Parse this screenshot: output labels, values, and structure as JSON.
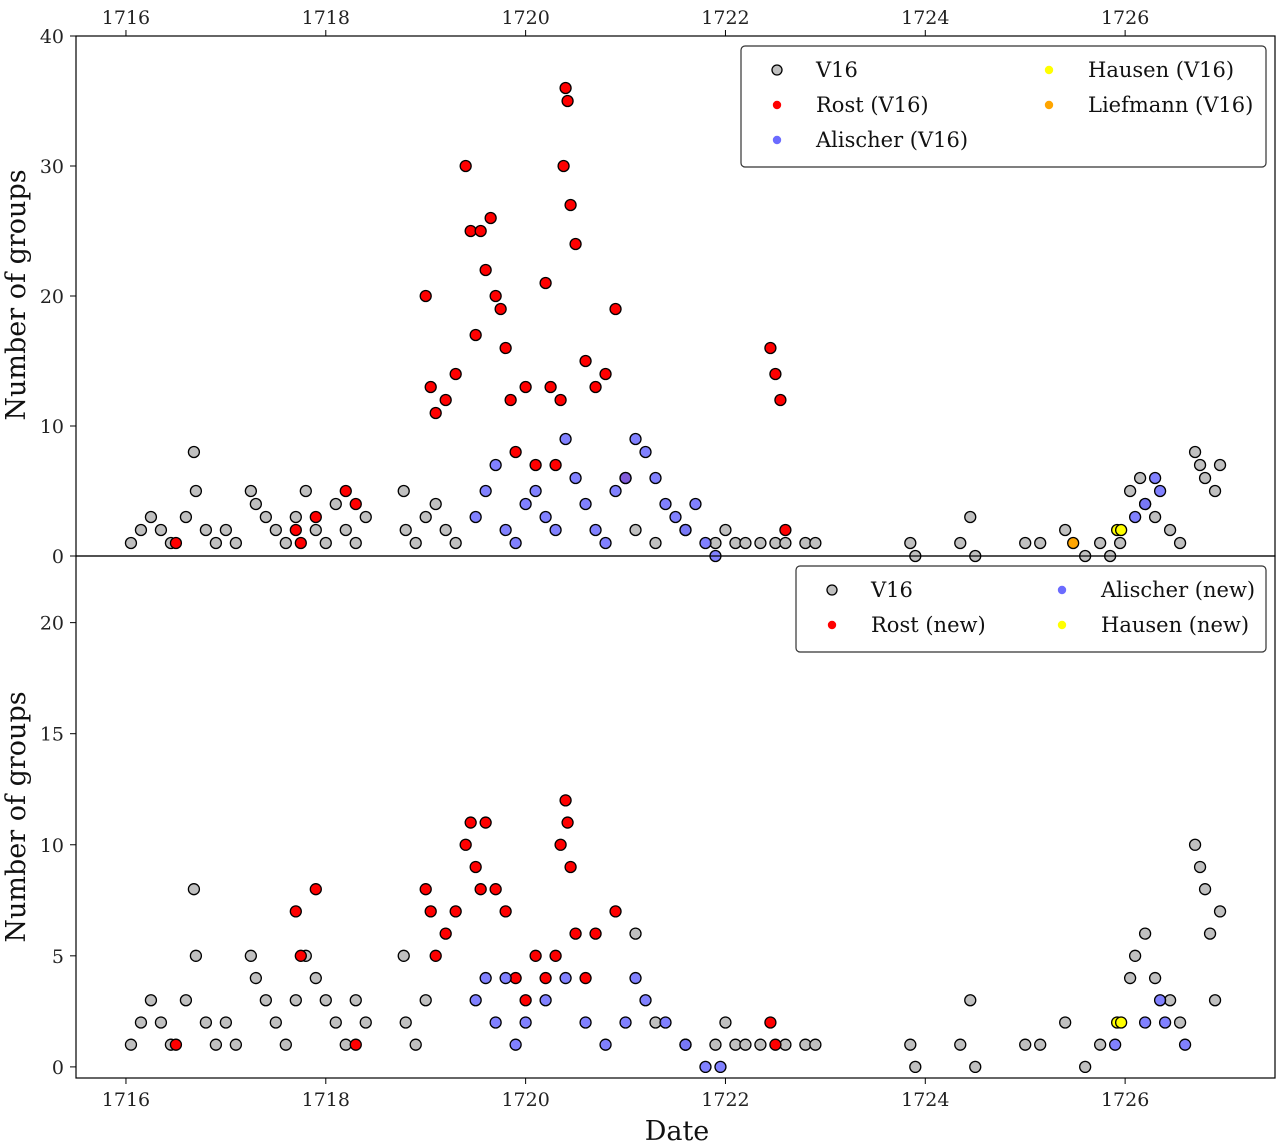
{
  "chart_data": [
    {
      "panel": "top",
      "type": "scatter",
      "xlabel": "",
      "ylabel": "Number of groups",
      "xlim": [
        1715.5,
        1727.5
      ],
      "ylim": [
        0,
        40
      ],
      "xticks": [
        "1716",
        "1718",
        "1720",
        "1722",
        "1724",
        "1726"
      ],
      "yticks": [
        "0",
        "10",
        "20",
        "30",
        "40"
      ],
      "x_ticks_on_top": true,
      "legend_position": "top-right",
      "legend": [
        {
          "label": "V16",
          "color": "#c0c0c0"
        },
        {
          "label": "Rost (V16)",
          "color": "#ff0000"
        },
        {
          "label": "Alischer (V16)",
          "color": "#6b6bff"
        },
        {
          "label": "Hausen (V16)",
          "color": "#ffff00"
        },
        {
          "label": "Liefmann (V16)",
          "color": "#ffa500"
        }
      ],
      "series": [
        {
          "name": "V16",
          "color": "#c0c0c0",
          "x": [
            1716.05,
            1716.15,
            1716.25,
            1716.35,
            1716.45,
            1716.6,
            1716.68,
            1716.7,
            1716.8,
            1716.9,
            1717.0,
            1717.1,
            1717.25,
            1717.3,
            1717.4,
            1717.5,
            1717.6,
            1717.7,
            1717.8,
            1717.9,
            1718.0,
            1718.1,
            1718.2,
            1718.3,
            1718.4,
            1718.78,
            1718.8,
            1718.9,
            1719.0,
            1719.1,
            1719.2,
            1719.3,
            1721.1,
            1721.3,
            1721.6,
            1721.9,
            1722.0,
            1722.1,
            1722.2,
            1722.35,
            1722.5,
            1722.6,
            1722.8,
            1722.9,
            1723.85,
            1723.9,
            1724.35,
            1724.45,
            1724.5,
            1725.0,
            1725.15,
            1725.4,
            1725.6,
            1725.75,
            1725.85,
            1725.95,
            1726.05,
            1726.15,
            1726.2,
            1726.3,
            1726.45,
            1726.55,
            1726.7,
            1726.75,
            1726.8,
            1726.9,
            1726.95
          ],
          "y": [
            1,
            2,
            3,
            2,
            1,
            3,
            8,
            5,
            2,
            1,
            2,
            1,
            5,
            4,
            3,
            2,
            1,
            3,
            5,
            2,
            1,
            4,
            2,
            1,
            3,
            5,
            2,
            1,
            3,
            4,
            2,
            1,
            2,
            1,
            2,
            1,
            2,
            1,
            1,
            1,
            1,
            1,
            1,
            1,
            1,
            0,
            1,
            3,
            0,
            1,
            1,
            2,
            0,
            1,
            0,
            1,
            5,
            6,
            4,
            3,
            2,
            1,
            8,
            7,
            6,
            5,
            7
          ]
        },
        {
          "name": "Rost (V16)",
          "color": "#ff0000",
          "x": [
            1716.5,
            1717.7,
            1717.75,
            1717.9,
            1718.2,
            1718.3,
            1719.0,
            1719.05,
            1719.1,
            1719.2,
            1719.3,
            1719.4,
            1719.45,
            1719.5,
            1719.55,
            1719.6,
            1719.65,
            1719.7,
            1719.75,
            1719.8,
            1719.85,
            1719.9,
            1720.0,
            1720.1,
            1720.2,
            1720.25,
            1720.3,
            1720.35,
            1720.38,
            1720.4,
            1720.42,
            1720.45,
            1720.5,
            1720.6,
            1720.7,
            1720.8,
            1720.9,
            1721.0,
            1722.45,
            1722.5,
            1722.55,
            1722.6
          ],
          "y": [
            1,
            2,
            1,
            3,
            5,
            4,
            20,
            13,
            11,
            12,
            14,
            30,
            25,
            17,
            25,
            22,
            26,
            20,
            19,
            16,
            12,
            8,
            13,
            7,
            21,
            13,
            7,
            12,
            30,
            36,
            35,
            27,
            24,
            15,
            13,
            14,
            19,
            6,
            16,
            14,
            12,
            2
          ]
        },
        {
          "name": "Alischer (V16)",
          "color": "#6b6bff",
          "x": [
            1719.5,
            1719.6,
            1719.7,
            1719.8,
            1719.9,
            1720.0,
            1720.1,
            1720.2,
            1720.3,
            1720.4,
            1720.5,
            1720.6,
            1720.7,
            1720.8,
            1720.9,
            1721.0,
            1721.1,
            1721.2,
            1721.3,
            1721.4,
            1721.5,
            1721.6,
            1721.7,
            1721.8,
            1721.9,
            1726.1,
            1726.2,
            1726.3,
            1726.35
          ],
          "y": [
            3,
            5,
            7,
            2,
            1,
            4,
            5,
            3,
            2,
            9,
            6,
            4,
            2,
            1,
            5,
            6,
            9,
            8,
            6,
            4,
            3,
            2,
            4,
            1,
            0,
            3,
            4,
            6,
            5
          ]
        },
        {
          "name": "Hausen (V16)",
          "color": "#ffff00",
          "x": [
            1725.92,
            1725.96
          ],
          "y": [
            2,
            2
          ]
        },
        {
          "name": "Liefmann (V16)",
          "color": "#ffa500",
          "x": [
            1725.48
          ],
          "y": [
            1
          ]
        }
      ]
    },
    {
      "panel": "bottom",
      "type": "scatter",
      "xlabel": "Date",
      "ylabel": "Number of groups",
      "xlim": [
        1715.5,
        1727.5
      ],
      "ylim": [
        -0.5,
        23
      ],
      "xticks": [
        "1716",
        "1718",
        "1720",
        "1722",
        "1724",
        "1726"
      ],
      "yticks": [
        "0",
        "5",
        "10",
        "15",
        "20"
      ],
      "legend_position": "top-right",
      "legend": [
        {
          "label": "V16",
          "color": "#c0c0c0"
        },
        {
          "label": "Rost (new)",
          "color": "#ff0000"
        },
        {
          "label": "Alischer (new)",
          "color": "#6b6bff"
        },
        {
          "label": "Hausen (new)",
          "color": "#ffff00"
        }
      ],
      "series": [
        {
          "name": "V16",
          "color": "#c0c0c0",
          "x": [
            1716.05,
            1716.15,
            1716.25,
            1716.35,
            1716.45,
            1716.6,
            1716.68,
            1716.7,
            1716.8,
            1716.9,
            1717.0,
            1717.1,
            1717.25,
            1717.3,
            1717.4,
            1717.5,
            1717.6,
            1717.7,
            1717.8,
            1717.9,
            1718.0,
            1718.1,
            1718.2,
            1718.3,
            1718.4,
            1718.78,
            1718.8,
            1718.9,
            1719.0,
            1721.1,
            1721.3,
            1721.6,
            1721.9,
            1722.0,
            1722.1,
            1722.2,
            1722.35,
            1722.6,
            1722.8,
            1722.9,
            1723.85,
            1723.9,
            1724.35,
            1724.45,
            1724.5,
            1725.0,
            1725.15,
            1725.4,
            1725.6,
            1725.75,
            1726.05,
            1726.1,
            1726.2,
            1726.3,
            1726.45,
            1726.55,
            1726.7,
            1726.75,
            1726.8,
            1726.85,
            1726.9,
            1726.95
          ],
          "y": [
            1,
            2,
            3,
            2,
            1,
            3,
            8,
            5,
            2,
            1,
            2,
            1,
            5,
            4,
            3,
            2,
            1,
            3,
            5,
            4,
            3,
            2,
            1,
            3,
            2,
            5,
            2,
            1,
            3,
            6,
            2,
            1,
            1,
            2,
            1,
            1,
            1,
            1,
            1,
            1,
            1,
            0,
            1,
            3,
            0,
            1,
            1,
            2,
            0,
            1,
            4,
            5,
            6,
            4,
            3,
            2,
            10,
            9,
            8,
            6,
            3,
            7
          ]
        },
        {
          "name": "Rost (new)",
          "color": "#ff0000",
          "x": [
            1716.5,
            1717.7,
            1717.75,
            1717.9,
            1718.3,
            1719.0,
            1719.05,
            1719.1,
            1719.2,
            1719.3,
            1719.4,
            1719.45,
            1719.5,
            1719.55,
            1719.6,
            1719.7,
            1719.8,
            1719.9,
            1720.0,
            1720.1,
            1720.2,
            1720.3,
            1720.35,
            1720.4,
            1720.42,
            1720.45,
            1720.5,
            1720.6,
            1720.7,
            1720.9,
            1722.45,
            1722.5
          ],
          "y": [
            1,
            7,
            5,
            8,
            1,
            8,
            7,
            5,
            6,
            7,
            10,
            11,
            9,
            8,
            11,
            8,
            7,
            4,
            3,
            5,
            4,
            5,
            10,
            12,
            11,
            9,
            6,
            4,
            6,
            7,
            2,
            1
          ]
        },
        {
          "name": "Alischer (new)",
          "color": "#6b6bff",
          "x": [
            1719.5,
            1719.6,
            1719.7,
            1719.8,
            1719.9,
            1720.0,
            1720.2,
            1720.4,
            1720.6,
            1720.8,
            1721.0,
            1721.1,
            1721.2,
            1721.4,
            1721.6,
            1721.8,
            1721.95,
            1725.9,
            1726.2,
            1726.35,
            1726.4,
            1726.6
          ],
          "y": [
            3,
            4,
            2,
            4,
            1,
            2,
            3,
            4,
            2,
            1,
            2,
            4,
            3,
            2,
            1,
            0,
            0,
            1,
            2,
            3,
            2,
            1
          ]
        },
        {
          "name": "Hausen (new)",
          "color": "#ffff00",
          "x": [
            1725.92,
            1725.96
          ],
          "y": [
            2,
            2
          ]
        }
      ]
    }
  ]
}
